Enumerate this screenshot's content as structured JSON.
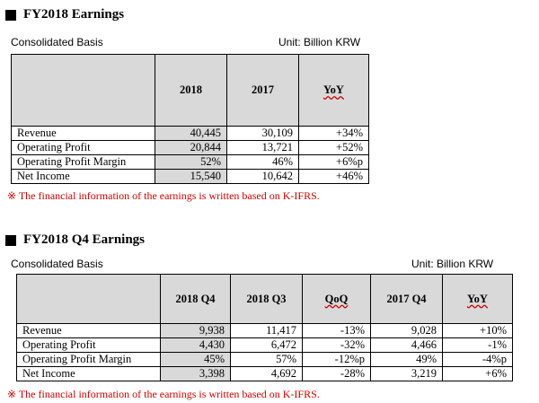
{
  "fy": {
    "title": "FY2018 Earnings",
    "basis": "Consolidated Basis",
    "unit": "Unit: Billion KRW",
    "headers": [
      "",
      "2018",
      "2017",
      "YoY"
    ],
    "rows": [
      [
        "Revenue",
        "40,445",
        "30,109",
        "+34%"
      ],
      [
        "Operating Profit",
        "20,844",
        "13,721",
        "+52%"
      ],
      [
        "Operating Profit Margin",
        "52%",
        "46%",
        "+6%p"
      ],
      [
        "Net Income",
        "15,540",
        "10,642",
        "+46%"
      ]
    ],
    "note": "※ The financial information of the earnings is written based on K-IFRS."
  },
  "q4": {
    "title": "FY2018 Q4 Earnings",
    "basis": "Consolidated Basis",
    "unit": "Unit: Billion KRW",
    "headers": [
      "",
      "2018 Q4",
      "2018 Q3",
      "QoQ",
      "2017 Q4",
      "YoY"
    ],
    "rows": [
      [
        "Revenue",
        "9,938",
        "11,417",
        "-13%",
        "9,028",
        "+10%"
      ],
      [
        "Operating Profit",
        "4,430",
        "6,472",
        "-32%",
        "4,466",
        "-1%"
      ],
      [
        "Operating Profit Margin",
        "45%",
        "57%",
        "-12%p",
        "49%",
        "-4%p"
      ],
      [
        "Net Income",
        "3,398",
        "4,692",
        "-28%",
        "3,219",
        "+6%"
      ]
    ],
    "note": "※ The financial information of the earnings is written based on K-IFRS."
  },
  "colors": {
    "header_bg": "#d9d9d9",
    "note": "#cc0000"
  }
}
